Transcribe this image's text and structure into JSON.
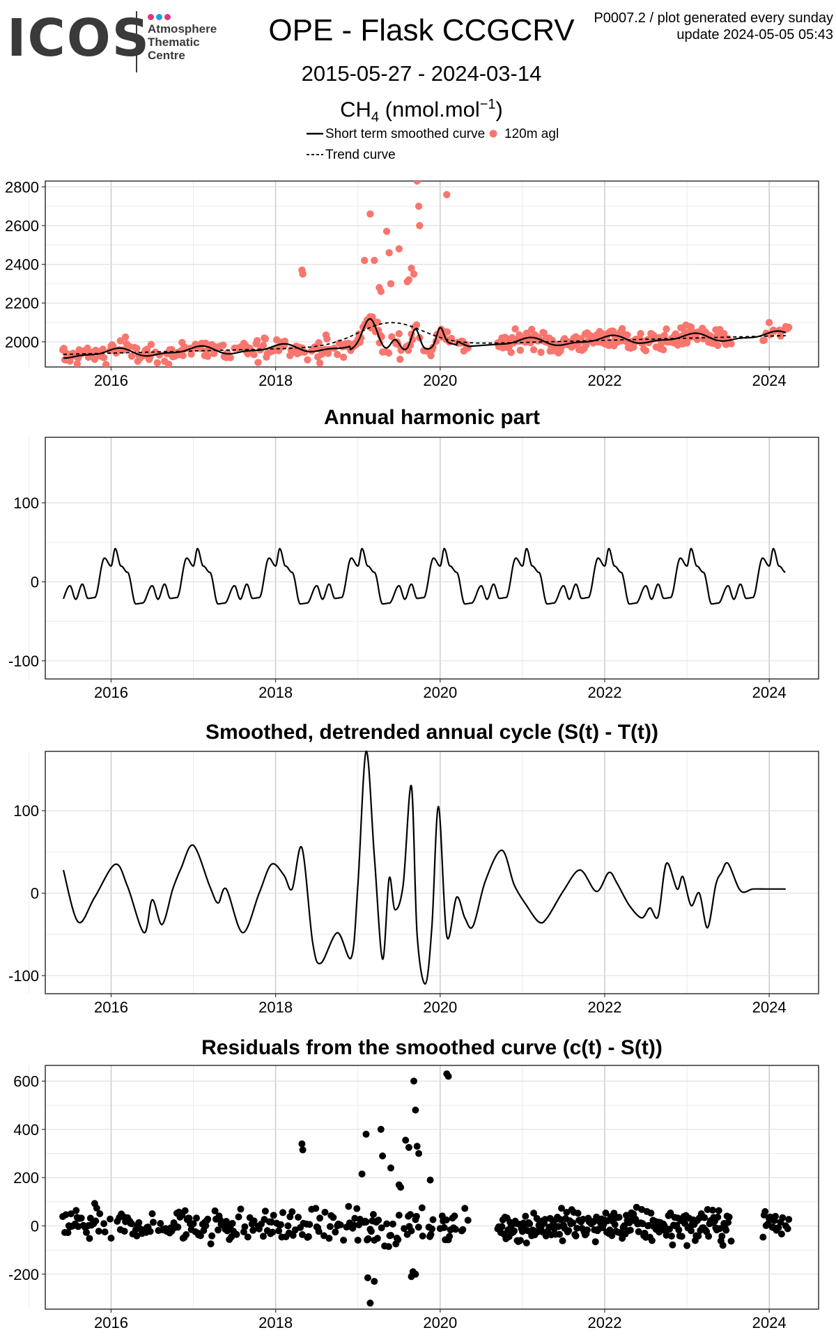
{
  "header": {
    "logo_text": "ICOS",
    "logo_subtitle": [
      "Atmosphere",
      "Thematic",
      "Centre"
    ],
    "logo_dot_colors": [
      "#e3367a",
      "#1aa3df",
      "#e3367a"
    ],
    "title": "OPE - Flask CCGCRV",
    "date_range": "2015-05-27 - 2024-03-14",
    "species": "CH",
    "species_sub": "4",
    "units_pre": "(nmol.mol",
    "units_sup": "−1",
    "units_post": ")",
    "meta_line1": "P0007.2 / plot generated every sunday",
    "meta_line2": "update  2024-05-05 05:43"
  },
  "legend": {
    "smoothed_label": "Short term smoothed curve",
    "trend_label": "Trend curve",
    "points_label": "120m agl",
    "points_color": "#f8766d"
  },
  "colors": {
    "points": "#f8766d",
    "residuals": "#000000",
    "grid_major": "#c8c8c8",
    "grid_minor": "#ebebeb",
    "border": "#333333"
  },
  "x_ticks": [
    "2016",
    "2018",
    "2020",
    "2022",
    "2024"
  ],
  "chart_data": [
    {
      "type": "scatter",
      "title": "",
      "xlabel": "",
      "ylabel": "",
      "x_range": [
        "2015-05-27",
        "2024-03-14"
      ],
      "ylim": [
        1870,
        2830
      ],
      "y_ticks": [
        2000,
        2200,
        2400,
        2600,
        2800
      ],
      "grid": true,
      "series": [
        {
          "name": "120m agl",
          "kind": "points",
          "color": "#f8766d",
          "note_points": "approx. 500 flask samples, baseline 1920-2100; excursions listed below",
          "peaks": [
            [
              2018.32,
              2370
            ],
            [
              2018.33,
              2350
            ],
            [
              2019.15,
              2660
            ],
            [
              2019.2,
              2420
            ],
            [
              2019.35,
              2570
            ],
            [
              2019.38,
              2460
            ],
            [
              2019.4,
              2300
            ],
            [
              2019.5,
              2480
            ],
            [
              2019.65,
              2380
            ],
            [
              2019.72,
              2830
            ],
            [
              2019.74,
              2700
            ],
            [
              2019.75,
              2600
            ],
            [
              2020.08,
              2760
            ],
            [
              2019.08,
              2420
            ],
            [
              2019.26,
              2280
            ],
            [
              2019.28,
              2260
            ],
            [
              2019.6,
              2310
            ],
            [
              2019.62,
              2320
            ],
            [
              2019.68,
              2350
            ]
          ]
        },
        {
          "name": "Short term smoothed curve",
          "kind": "line"
        },
        {
          "name": "Trend curve",
          "kind": "dashed-line"
        }
      ]
    },
    {
      "type": "line",
      "title": "Annual harmonic part",
      "xlabel": "",
      "ylabel": "",
      "ylim": [
        -123,
        183
      ],
      "y_ticks": [
        -100,
        0,
        100
      ],
      "grid": true,
      "series": [
        {
          "name": "",
          "period_years": 1,
          "max": 42,
          "min": -29,
          "peak_month_fraction": 0.05
        }
      ]
    },
    {
      "type": "line",
      "title": "Smoothed, detrended annual cycle (S(t) - T(t))",
      "xlabel": "",
      "ylabel": "",
      "ylim": [
        -122,
        172
      ],
      "y_ticks": [
        -100,
        0,
        100
      ],
      "grid": true,
      "series": [
        {
          "name": "",
          "x": [
            2015.42,
            2015.6,
            2015.8,
            2016.05,
            2016.2,
            2016.4,
            2016.5,
            2016.62,
            2016.75,
            2016.85,
            2017.0,
            2017.2,
            2017.3,
            2017.4,
            2017.6,
            2017.8,
            2017.95,
            2018.1,
            2018.2,
            2018.32,
            2018.45,
            2018.55,
            2018.75,
            2018.92,
            2019.0,
            2019.1,
            2019.2,
            2019.3,
            2019.38,
            2019.45,
            2019.55,
            2019.65,
            2019.72,
            2019.82,
            2019.9,
            2019.98,
            2020.08,
            2020.2,
            2020.3,
            2020.4,
            2020.55,
            2020.75,
            2020.9,
            2021.05,
            2021.2,
            2021.3,
            2021.5,
            2021.7,
            2021.9,
            2022.05,
            2022.15,
            2022.3,
            2022.45,
            2022.55,
            2022.65,
            2022.75,
            2022.88,
            2022.95,
            2023.05,
            2023.15,
            2023.25,
            2023.35,
            2023.42,
            2023.5,
            2023.65,
            2023.8,
            2023.95,
            2024.05,
            2024.15,
            2024.2
          ],
          "values": [
            28,
            -35,
            -5,
            35,
            8,
            -48,
            -8,
            -38,
            5,
            30,
            58,
            8,
            -12,
            5,
            -48,
            0,
            35,
            22,
            5,
            55,
            -60,
            -85,
            -48,
            -78,
            10,
            172,
            45,
            -80,
            18,
            -20,
            10,
            130,
            -50,
            -110,
            -40,
            105,
            -52,
            -5,
            -30,
            -40,
            15,
            52,
            10,
            -15,
            -35,
            -30,
            3,
            28,
            2,
            25,
            12,
            -15,
            -30,
            -18,
            -28,
            36,
            5,
            20,
            -15,
            0,
            -42,
            10,
            25,
            36,
            3,
            5,
            5,
            5,
            5,
            5
          ]
        }
      ]
    },
    {
      "type": "scatter",
      "title": "Residuals from the smoothed curve (c(t) - S(t))",
      "xlabel": "",
      "ylabel": "",
      "ylim": [
        -345,
        665
      ],
      "y_ticks": [
        -200,
        0,
        200,
        400,
        600
      ],
      "grid": true,
      "series": [
        {
          "name": "",
          "note_points": "approx. 500 residuals, baseline -80 to 100; excursions listed below",
          "peaks": [
            [
              2018.32,
              340
            ],
            [
              2018.33,
              315
            ],
            [
              2019.05,
              215
            ],
            [
              2019.1,
              380
            ],
            [
              2019.12,
              -215
            ],
            [
              2019.15,
              -320
            ],
            [
              2019.2,
              -230
            ],
            [
              2019.28,
              400
            ],
            [
              2019.3,
              290
            ],
            [
              2019.4,
              240
            ],
            [
              2019.5,
              170
            ],
            [
              2019.52,
              160
            ],
            [
              2019.58,
              355
            ],
            [
              2019.62,
              325
            ],
            [
              2019.68,
              600
            ],
            [
              2019.7,
              480
            ],
            [
              2019.72,
              330
            ],
            [
              2019.74,
              300
            ],
            [
              2019.65,
              -210
            ],
            [
              2019.67,
              -190
            ],
            [
              2019.7,
              -200
            ],
            [
              2020.08,
              630
            ],
            [
              2020.1,
              620
            ],
            [
              2019.88,
              190
            ],
            [
              2019.78,
              75
            ]
          ]
        }
      ]
    }
  ]
}
